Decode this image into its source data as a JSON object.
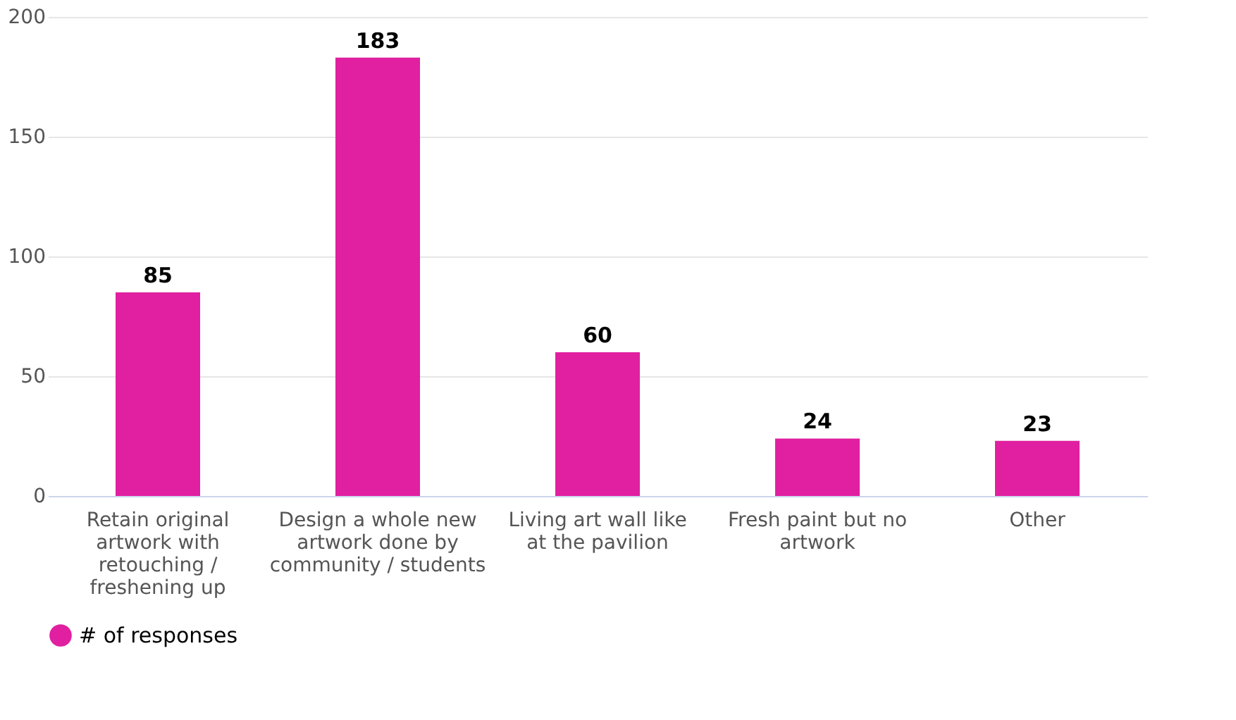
{
  "chart_data": {
    "type": "bar",
    "categories": [
      "Retain original artwork with retouching / freshening up",
      "Design a whole new artwork done by community / students",
      "Living art wall like at the pavilion",
      "Fresh paint but no artwork",
      "Other"
    ],
    "series": [
      {
        "name": "# of responses",
        "color": "#e020a0",
        "values": [
          85,
          183,
          60,
          24,
          23
        ]
      }
    ],
    "ylim": [
      0,
      200
    ],
    "yticks": [
      0,
      50,
      100,
      150,
      200
    ],
    "grid": "y",
    "legend": "bottom",
    "data_labels": true
  }
}
